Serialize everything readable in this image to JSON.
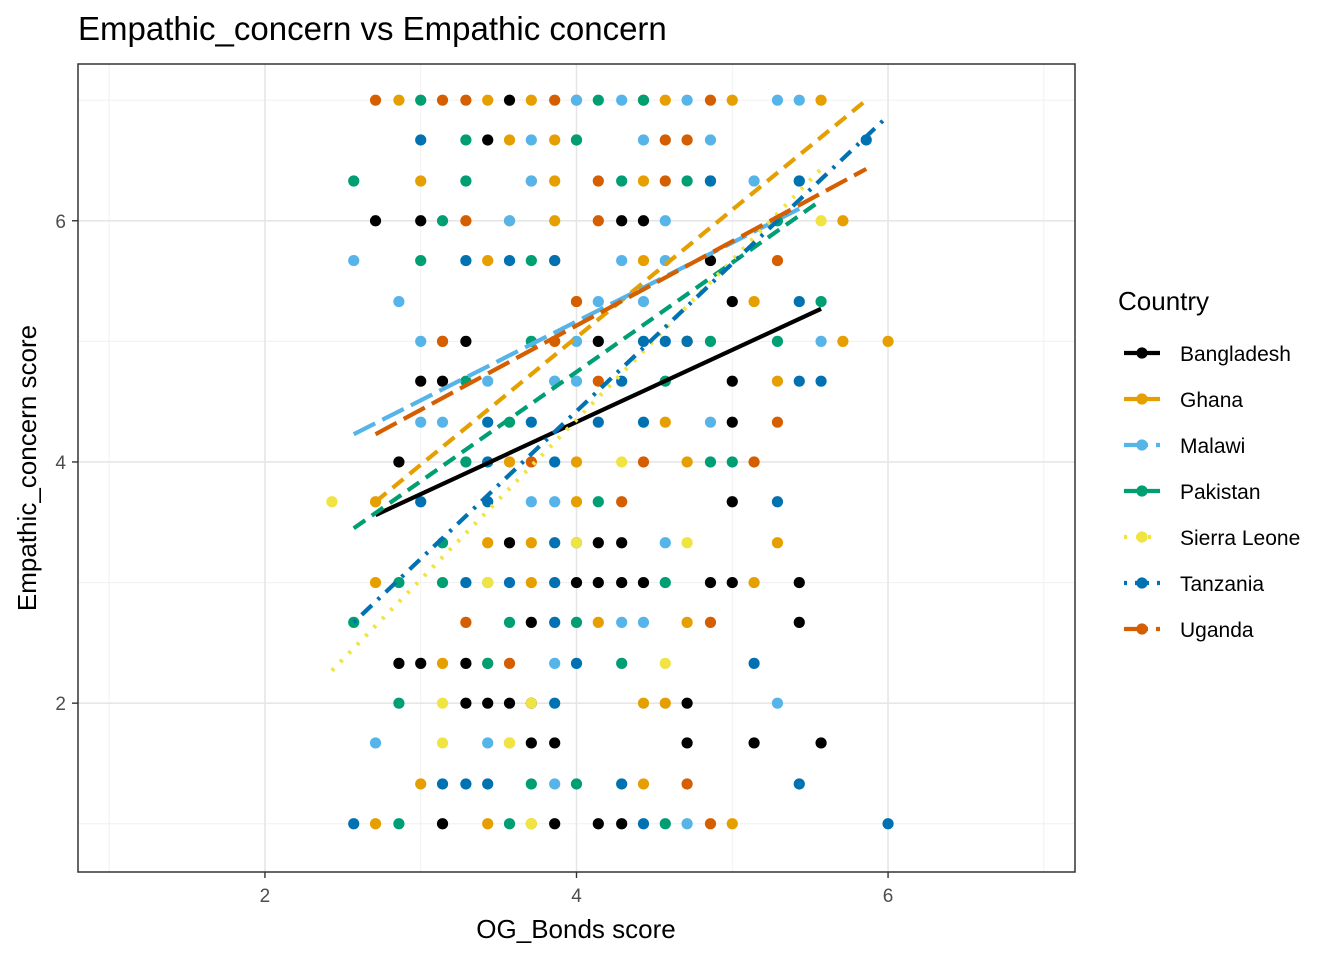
{
  "chart_data": {
    "type": "scatter",
    "title": "Empathic_concern vs Empathic concern",
    "xlabel": "OG_Bonds score",
    "ylabel": "Empathic_concern score",
    "xlim": [
      0.8,
      7.2
    ],
    "ylim": [
      0.6,
      7.3
    ],
    "x_ticks": [
      2,
      4,
      6
    ],
    "y_ticks": [
      2,
      4,
      6
    ],
    "x_minor": [
      1,
      3,
      5,
      7
    ],
    "y_minor": [
      1,
      3,
      5,
      7
    ],
    "grid": true,
    "legend_title": "Country",
    "legend_position": "right",
    "series": [
      {
        "name": "Bangladesh",
        "color": "#000000",
        "line_style": "solid",
        "fit": {
          "x": [
            2.71,
            5.57
          ],
          "y": [
            3.56,
            5.27
          ]
        },
        "points": [
          [
            3.57,
            7
          ],
          [
            3.43,
            6.67
          ],
          [
            2.71,
            6
          ],
          [
            3.0,
            6
          ],
          [
            4.29,
            6
          ],
          [
            4.43,
            6
          ],
          [
            4.86,
            5.67
          ],
          [
            5.0,
            5.33
          ],
          [
            3.29,
            5
          ],
          [
            4.14,
            5
          ],
          [
            4.71,
            5
          ],
          [
            3.0,
            4.67
          ],
          [
            3.14,
            4.67
          ],
          [
            5.0,
            4.67
          ],
          [
            5.0,
            4.33
          ],
          [
            2.86,
            4
          ],
          [
            5.0,
            3.67
          ],
          [
            3.57,
            3.33
          ],
          [
            4.14,
            3.33
          ],
          [
            4.29,
            3.33
          ],
          [
            4.0,
            3
          ],
          [
            4.14,
            3
          ],
          [
            4.29,
            3
          ],
          [
            4.43,
            3
          ],
          [
            4.86,
            3
          ],
          [
            5.0,
            3
          ],
          [
            5.43,
            3
          ],
          [
            3.71,
            2.67
          ],
          [
            5.43,
            2.67
          ],
          [
            2.86,
            2.33
          ],
          [
            3.0,
            2.33
          ],
          [
            3.29,
            2.33
          ],
          [
            3.29,
            2
          ],
          [
            3.43,
            2
          ],
          [
            3.57,
            2
          ],
          [
            3.71,
            2
          ],
          [
            4.71,
            2
          ],
          [
            3.71,
            1.67
          ],
          [
            3.86,
            1.67
          ],
          [
            4.71,
            1.67
          ],
          [
            5.14,
            1.67
          ],
          [
            5.57,
            1.67
          ],
          [
            3.14,
            1
          ],
          [
            3.86,
            1
          ],
          [
            4.14,
            1
          ],
          [
            4.29,
            1
          ]
        ]
      },
      {
        "name": "Ghana",
        "color": "#e69f00",
        "line_style": "dashed",
        "fit": {
          "x": [
            2.71,
            5.86
          ],
          "y": [
            3.67,
            7.0
          ]
        },
        "points": [
          [
            2.86,
            7
          ],
          [
            3.43,
            7
          ],
          [
            3.71,
            7
          ],
          [
            4.0,
            7
          ],
          [
            4.43,
            7
          ],
          [
            4.57,
            7
          ],
          [
            5.0,
            7
          ],
          [
            5.57,
            7
          ],
          [
            3.57,
            6.67
          ],
          [
            3.86,
            6.67
          ],
          [
            4.0,
            6.67
          ],
          [
            3.0,
            6.33
          ],
          [
            3.71,
            6.33
          ],
          [
            3.86,
            6.33
          ],
          [
            4.43,
            6.33
          ],
          [
            3.57,
            6
          ],
          [
            3.86,
            6
          ],
          [
            5.71,
            6
          ],
          [
            3.43,
            5.67
          ],
          [
            3.86,
            5.67
          ],
          [
            4.43,
            5.67
          ],
          [
            4.0,
            5.33
          ],
          [
            5.14,
            5.33
          ],
          [
            4.71,
            5
          ],
          [
            5.71,
            5
          ],
          [
            6.0,
            5
          ],
          [
            3.86,
            4.67
          ],
          [
            5.29,
            4.67
          ],
          [
            4.57,
            4.33
          ],
          [
            3.57,
            4
          ],
          [
            4.0,
            4
          ],
          [
            4.71,
            4
          ],
          [
            2.71,
            3.67
          ],
          [
            4.0,
            3.67
          ],
          [
            3.43,
            3.33
          ],
          [
            3.71,
            3.33
          ],
          [
            5.29,
            3.33
          ],
          [
            2.71,
            3
          ],
          [
            3.71,
            3
          ],
          [
            5.14,
            3
          ],
          [
            4.14,
            2.67
          ],
          [
            4.71,
            2.67
          ],
          [
            3.14,
            2.33
          ],
          [
            3.43,
            2.33
          ],
          [
            4.43,
            2
          ],
          [
            4.57,
            2
          ],
          [
            3.57,
            1.67
          ],
          [
            3.0,
            1.33
          ],
          [
            4.43,
            1.33
          ],
          [
            2.71,
            1
          ],
          [
            3.43,
            1
          ],
          [
            3.71,
            1
          ],
          [
            5.0,
            1
          ]
        ]
      },
      {
        "name": "Malawi",
        "color": "#56b4e9",
        "line_style": "longdash",
        "fit": {
          "x": [
            2.57,
            5.43
          ],
          "y": [
            4.23,
            6.1
          ]
        },
        "points": [
          [
            4.0,
            7
          ],
          [
            4.29,
            7
          ],
          [
            4.71,
            7
          ],
          [
            5.29,
            7
          ],
          [
            5.43,
            7
          ],
          [
            3.71,
            6.67
          ],
          [
            4.43,
            6.67
          ],
          [
            4.86,
            6.67
          ],
          [
            3.71,
            6.33
          ],
          [
            5.14,
            6.33
          ],
          [
            5.43,
            6.33
          ],
          [
            3.57,
            6
          ],
          [
            4.57,
            6
          ],
          [
            2.57,
            5.67
          ],
          [
            4.29,
            5.67
          ],
          [
            4.57,
            5.67
          ],
          [
            2.86,
            5.33
          ],
          [
            4.14,
            5.33
          ],
          [
            4.43,
            5.33
          ],
          [
            3.0,
            5
          ],
          [
            3.14,
            5
          ],
          [
            4.0,
            5
          ],
          [
            5.57,
            5
          ],
          [
            3.43,
            4.67
          ],
          [
            3.86,
            4.67
          ],
          [
            4.0,
            4.67
          ],
          [
            3.0,
            4.33
          ],
          [
            3.14,
            4.33
          ],
          [
            4.86,
            4.33
          ],
          [
            3.71,
            3.67
          ],
          [
            3.86,
            3.67
          ],
          [
            4.57,
            3.33
          ],
          [
            3.43,
            3
          ],
          [
            4.29,
            2.67
          ],
          [
            4.43,
            2.67
          ],
          [
            3.86,
            2.33
          ],
          [
            5.29,
            2
          ],
          [
            2.71,
            1.67
          ],
          [
            3.43,
            1.67
          ],
          [
            3.86,
            1.33
          ],
          [
            4.71,
            1
          ]
        ]
      },
      {
        "name": "Pakistan",
        "color": "#009e73",
        "line_style": "dashed",
        "fit": {
          "x": [
            2.57,
            5.57
          ],
          "y": [
            3.45,
            6.17
          ]
        },
        "points": [
          [
            3.0,
            7
          ],
          [
            4.14,
            7
          ],
          [
            4.43,
            7
          ],
          [
            3.29,
            6.67
          ],
          [
            4.0,
            6.67
          ],
          [
            2.57,
            6.33
          ],
          [
            3.29,
            6.33
          ],
          [
            4.29,
            6.33
          ],
          [
            4.71,
            6.33
          ],
          [
            4.86,
            6.33
          ],
          [
            3.14,
            6
          ],
          [
            5.29,
            6
          ],
          [
            3.0,
            5.67
          ],
          [
            3.71,
            5.67
          ],
          [
            5.57,
            5.33
          ],
          [
            3.71,
            5
          ],
          [
            4.86,
            5
          ],
          [
            5.29,
            5
          ],
          [
            3.29,
            4.67
          ],
          [
            4.57,
            4.67
          ],
          [
            3.57,
            4.33
          ],
          [
            3.29,
            4
          ],
          [
            4.86,
            4
          ],
          [
            5.0,
            4
          ],
          [
            4.14,
            3.67
          ],
          [
            3.14,
            3.33
          ],
          [
            4.0,
            3.33
          ],
          [
            2.86,
            3
          ],
          [
            3.14,
            3
          ],
          [
            4.57,
            3
          ],
          [
            3.57,
            2.67
          ],
          [
            4.0,
            2.67
          ],
          [
            3.43,
            2.33
          ],
          [
            4.29,
            2.33
          ],
          [
            2.86,
            2
          ],
          [
            2.57,
            2.67
          ],
          [
            3.71,
            1.33
          ],
          [
            4.0,
            1.33
          ],
          [
            2.86,
            1
          ],
          [
            3.57,
            1
          ],
          [
            4.57,
            1
          ]
        ]
      },
      {
        "name": "Sierra Leone",
        "color": "#f0e442",
        "line_style": "dotted",
        "fit": {
          "x": [
            2.43,
            5.57
          ],
          "y": [
            2.27,
            6.43
          ]
        },
        "points": [
          [
            2.43,
            3.67
          ],
          [
            3.14,
            2
          ],
          [
            3.14,
            1.67
          ],
          [
            3.57,
            1.67
          ],
          [
            4.0,
            3.33
          ],
          [
            3.43,
            3
          ],
          [
            4.29,
            4
          ],
          [
            4.57,
            2.33
          ],
          [
            4.71,
            3.33
          ],
          [
            5.57,
            6
          ],
          [
            3.71,
            2
          ],
          [
            3.71,
            1
          ]
        ]
      },
      {
        "name": "Tanzania",
        "color": "#0072b2",
        "line_style": "dotdash",
        "fit": {
          "x": [
            2.57,
            6.0
          ],
          "y": [
            2.67,
            6.87
          ]
        },
        "points": [
          [
            5.86,
            6.67
          ],
          [
            3.0,
            6.67
          ],
          [
            4.86,
            6.33
          ],
          [
            5.43,
            6.33
          ],
          [
            3.29,
            5.67
          ],
          [
            3.57,
            5.67
          ],
          [
            3.86,
            5.67
          ],
          [
            5.43,
            5.33
          ],
          [
            4.43,
            5
          ],
          [
            4.57,
            5
          ],
          [
            5.43,
            4.67
          ],
          [
            5.57,
            4.67
          ],
          [
            4.29,
            4.67
          ],
          [
            3.71,
            4.33
          ],
          [
            4.14,
            4.33
          ],
          [
            4.43,
            4.33
          ],
          [
            3.43,
            4.33
          ],
          [
            3.43,
            4
          ],
          [
            3.86,
            4
          ],
          [
            3.0,
            3.67
          ],
          [
            3.43,
            3.67
          ],
          [
            5.29,
            3.67
          ],
          [
            3.86,
            3.33
          ],
          [
            3.29,
            3
          ],
          [
            3.57,
            3
          ],
          [
            3.86,
            3
          ],
          [
            3.86,
            2.67
          ],
          [
            5.14,
            2.33
          ],
          [
            4.0,
            2.33
          ],
          [
            3.86,
            2
          ],
          [
            3.14,
            1.33
          ],
          [
            3.29,
            1.33
          ],
          [
            3.43,
            1.33
          ],
          [
            4.29,
            1.33
          ],
          [
            5.43,
            1.33
          ],
          [
            2.57,
            1
          ],
          [
            4.43,
            1
          ],
          [
            6.0,
            1
          ],
          [
            4.71,
            5
          ]
        ]
      },
      {
        "name": "Uganda",
        "color": "#d55e00",
        "line_style": "longdash",
        "fit": {
          "x": [
            2.71,
            5.86
          ],
          "y": [
            4.23,
            6.43
          ]
        },
        "points": [
          [
            2.71,
            7
          ],
          [
            3.14,
            7
          ],
          [
            3.29,
            7
          ],
          [
            3.86,
            7
          ],
          [
            4.86,
            7
          ],
          [
            4.57,
            6.67
          ],
          [
            4.71,
            6.67
          ],
          [
            4.14,
            6.33
          ],
          [
            4.57,
            6.33
          ],
          [
            3.29,
            6
          ],
          [
            4.14,
            6
          ],
          [
            5.29,
            5.67
          ],
          [
            4.0,
            5.33
          ],
          [
            3.14,
            5
          ],
          [
            3.86,
            5
          ],
          [
            4.14,
            4.67
          ],
          [
            5.29,
            4.33
          ],
          [
            3.71,
            4
          ],
          [
            4.43,
            4
          ],
          [
            5.14,
            4
          ],
          [
            4.29,
            3.67
          ],
          [
            3.29,
            2.67
          ],
          [
            4.86,
            2.67
          ],
          [
            3.57,
            2.33
          ],
          [
            4.71,
            1.33
          ],
          [
            4.86,
            1
          ]
        ]
      }
    ]
  }
}
